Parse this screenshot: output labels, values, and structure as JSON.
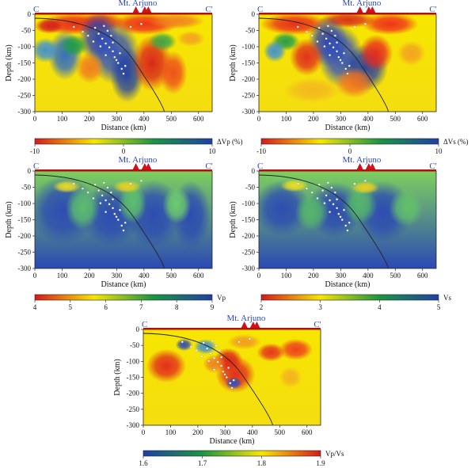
{
  "figure": {
    "volcano_label": "Mt. Arjuno",
    "section_start": "C",
    "section_end": "C'",
    "x_axis_label": "Distance (km)",
    "y_axis_label": "Depth (km)",
    "x_ticks": [
      "0",
      "100",
      "200",
      "300",
      "400",
      "500",
      "600"
    ],
    "y_ticks": [
      "0",
      "-50",
      "-100",
      "-150",
      "-200",
      "-250",
      "-300"
    ]
  },
  "panels": [
    {
      "id": "dvp",
      "field": "anomaly_p"
    },
    {
      "id": "dvs",
      "field": "anomaly_s"
    },
    {
      "id": "vp",
      "field": "vp"
    },
    {
      "id": "vs",
      "field": "vs"
    },
    {
      "id": "vpvs",
      "field": "ratio"
    }
  ],
  "colorbars": [
    {
      "id": "dvp",
      "label": "ΔVp (%)",
      "ticks": [
        "-10",
        "0",
        "10"
      ],
      "stops": [
        "#d7191c",
        "#f7e600",
        "#1a9641",
        "#1f3fa8"
      ]
    },
    {
      "id": "dvs",
      "label": "ΔVs (%)",
      "ticks": [
        "-10",
        "0",
        "10"
      ],
      "stops": [
        "#d7191c",
        "#f7e600",
        "#1a9641",
        "#1f3fa8"
      ]
    },
    {
      "id": "vp",
      "label": "Vp",
      "ticks": [
        "4",
        "5",
        "6",
        "7",
        "8",
        "9"
      ],
      "stops": [
        "#d7191c",
        "#f7e600",
        "#1a9641",
        "#1f3fa8"
      ]
    },
    {
      "id": "vs",
      "label": "Vs",
      "ticks": [
        "2",
        "3",
        "4",
        "5"
      ],
      "stops": [
        "#d7191c",
        "#f7e600",
        "#1a9641",
        "#1f3fa8"
      ]
    },
    {
      "id": "vpvs",
      "label": "Vp/Vs",
      "ticks": [
        "1.6",
        "1.7",
        "1.8",
        "1.9"
      ],
      "stops": [
        "#1f3fa8",
        "#1a9641",
        "#f7e600",
        "#d7191c"
      ]
    }
  ]
}
